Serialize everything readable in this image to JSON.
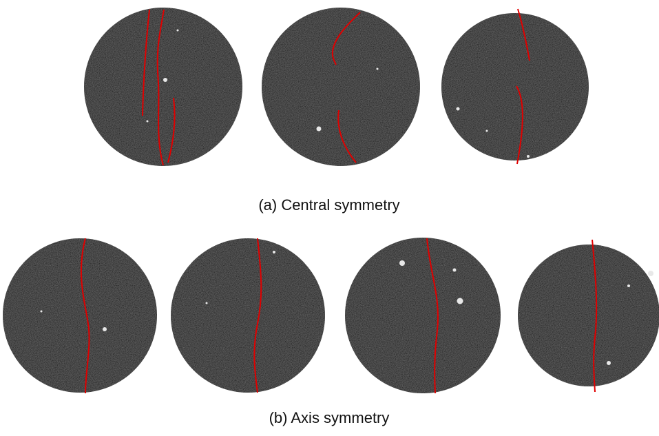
{
  "figure": {
    "panels": [
      {
        "caption": "(a) Central symmetry"
      },
      {
        "caption": "(b) Axis symmetry"
      }
    ]
  }
}
